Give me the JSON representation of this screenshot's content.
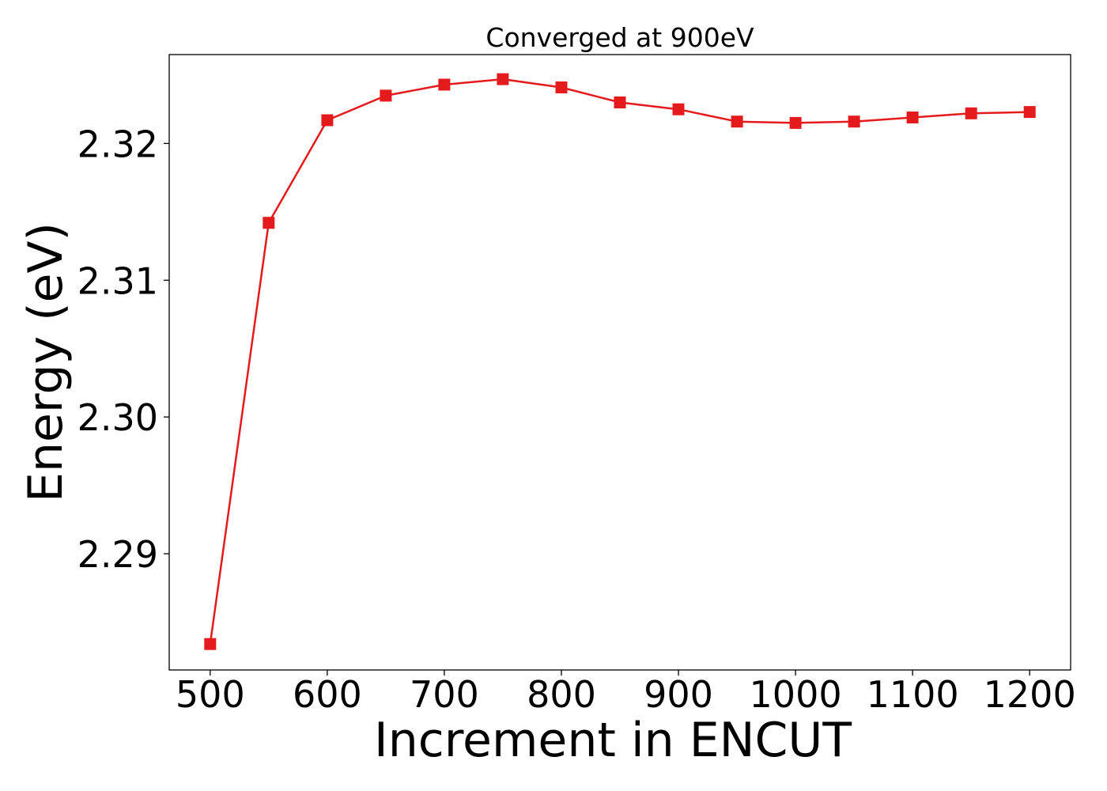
{
  "chart_data": {
    "type": "line",
    "title": "Converged at 900eV",
    "xlabel": "Increment in ENCUT",
    "ylabel": "Energy (eV)",
    "x": [
      500,
      550,
      600,
      650,
      700,
      750,
      800,
      850,
      900,
      950,
      1000,
      1050,
      1100,
      1150,
      1200
    ],
    "series": [
      {
        "values": [
          2.2834,
          2.3142,
          2.3217,
          2.3235,
          2.3243,
          2.3247,
          2.3241,
          2.323,
          2.3225,
          2.3216,
          2.3215,
          2.3216,
          2.3219,
          2.3222,
          2.3223
        ],
        "color": "#e41a1c",
        "marker": "square"
      }
    ],
    "xticks": [
      500,
      600,
      700,
      800,
      900,
      1000,
      1100,
      1200
    ],
    "xtick_labels": [
      "500",
      "600",
      "700",
      "800",
      "900",
      "1000",
      "1100",
      "1200"
    ],
    "yticks": [
      2.29,
      2.3,
      2.31,
      2.32
    ],
    "ytick_labels": [
      "2.29",
      "2.30",
      "2.31",
      "2.32"
    ],
    "xlim": [
      465,
      1235
    ],
    "ylim": [
      2.2815,
      2.3265
    ],
    "grid": false,
    "legend": "none"
  }
}
